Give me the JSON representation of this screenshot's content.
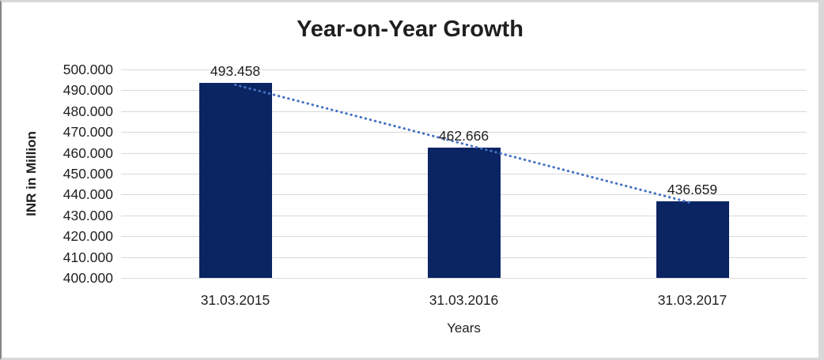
{
  "chart_data": {
    "type": "bar",
    "title": "Year-on-Year Growth",
    "ylabel": "INR in Million",
    "xlabel": "Years",
    "categories": [
      "31.03.2015",
      "31.03.2016",
      "31.03.2017"
    ],
    "values": [
      493.458,
      462.666,
      436.659
    ],
    "value_labels": [
      "493.458",
      "462.666",
      "436.659"
    ],
    "ylim": [
      400,
      500
    ],
    "ytick_step": 10,
    "ytick_labels": [
      "400.000",
      "410.000",
      "420.000",
      "430.000",
      "440.000",
      "450.000",
      "460.000",
      "470.000",
      "480.000",
      "490.000",
      "500.000"
    ],
    "grid": true,
    "legend": false,
    "trendline": {
      "type": "linear",
      "style": "dotted"
    },
    "colors": {
      "bar": "#0b2462",
      "trendline": "#4472c4",
      "gridline": "#d9d9d9",
      "text": "#1f1f1f"
    }
  }
}
